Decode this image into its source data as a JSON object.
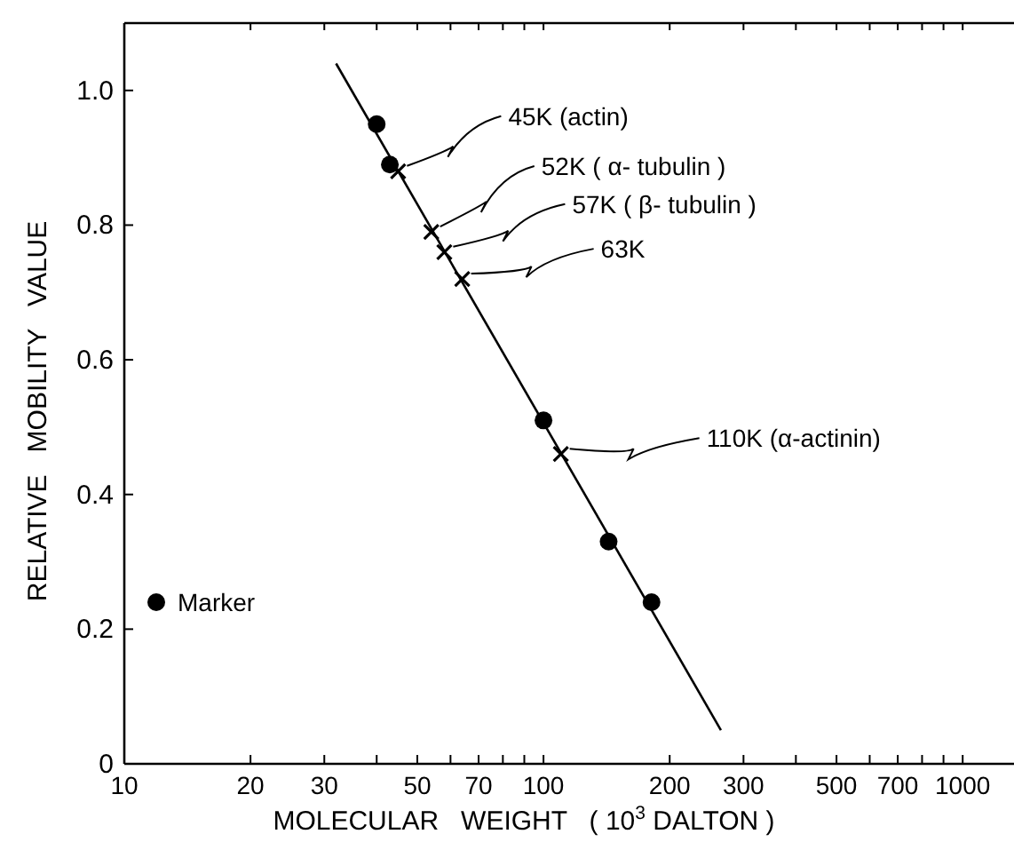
{
  "chart_data": {
    "type": "scatter",
    "xlabel": "MOLECULAR   WEIGHT   ( 10$^{3}$ DALTON )",
    "ylabel": "RELATIVE   MOBILITY   VALUE",
    "log": "x",
    "xlim": [
      10,
      1300
    ],
    "ylim": [
      0,
      1.1
    ],
    "xticks": [
      10,
      20,
      30,
      {
        "value": 40,
        "label": null
      },
      50,
      {
        "value": 60,
        "label": null
      },
      70,
      {
        "value": 80,
        "label": null
      },
      {
        "value": 90,
        "label": null
      },
      100,
      200,
      300,
      {
        "value": 400,
        "label": null
      },
      500,
      {
        "value": 600,
        "label": null
      },
      700,
      {
        "value": 800,
        "label": null
      },
      {
        "value": 900,
        "label": null
      },
      1000
    ],
    "yticks": [
      0,
      0.2,
      0.4,
      0.6,
      0.8,
      {
        "value": 1,
        "label": "1.0"
      }
    ],
    "grid": false,
    "legend": "left",
    "series": [
      {
        "name": "Marker",
        "marker": "circle",
        "color": "#000000",
        "x": [
          40,
          43,
          100,
          143,
          181
        ],
        "values": [
          0.95,
          0.89,
          0.51,
          0.33,
          0.24
        ]
      },
      {
        "marker": "cross",
        "color": "#000000",
        "x": [
          45,
          54,
          58,
          64,
          110
        ],
        "values": [
          0.88,
          0.79,
          0.76,
          0.72,
          0.46
        ]
      },
      {
        "type": "line",
        "marker": "none",
        "line_style": "solid",
        "color": "#000000",
        "x": [
          32,
          265
        ],
        "values": [
          1.04,
          0.05
        ]
      }
    ],
    "annotations": [
      {
        "text": "45K (actin)",
        "x": 45,
        "y": 0.88
      },
      {
        "text": "52K ( α- tubulin )",
        "x": 54,
        "y": 0.79
      },
      {
        "text": "57K ( β- tubulin )",
        "x": 58,
        "y": 0.76
      },
      {
        "text": "63K",
        "x": 64,
        "y": 0.72
      },
      {
        "text": "110K (α-actinin)",
        "x": 110,
        "y": 0.46
      }
    ]
  }
}
